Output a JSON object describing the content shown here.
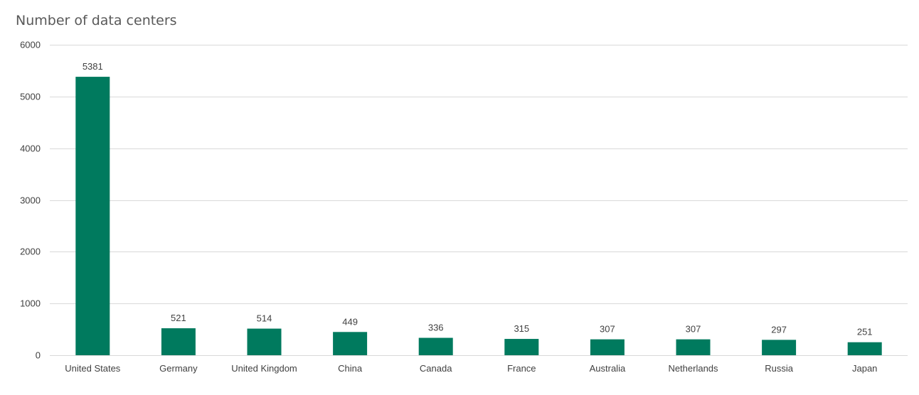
{
  "chart_data": {
    "type": "bar",
    "title": "Number of data centers",
    "categories": [
      "United States",
      "Germany",
      "United Kingdom",
      "China",
      "Canada",
      "France",
      "Australia",
      "Netherlands",
      "Russia",
      "Japan"
    ],
    "values": [
      5381,
      521,
      514,
      449,
      336,
      315,
      307,
      307,
      297,
      251
    ],
    "xlabel": "",
    "ylabel": "",
    "ylim": [
      0,
      6000
    ],
    "yticks": [
      0,
      1000,
      2000,
      3000,
      4000,
      5000,
      6000
    ],
    "grid": true,
    "data_labels": true,
    "bar_color": "#007A5E"
  }
}
